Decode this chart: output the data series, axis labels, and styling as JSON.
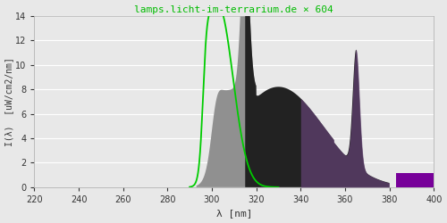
{
  "title": "lamps.licht-im-terrarium.de × 604",
  "xlabel": "λ [nm]",
  "ylabel": "I(λ)  [uW/cm2/nm]",
  "xlim": [
    220,
    400
  ],
  "ylim": [
    0,
    14
  ],
  "yticks": [
    0,
    2,
    4,
    6,
    8,
    10,
    12,
    14
  ],
  "xticks": [
    220,
    240,
    260,
    280,
    300,
    320,
    340,
    360,
    380,
    400
  ],
  "bg_color": "#e8e8e8",
  "grid_color": "#ffffff",
  "title_color": "#00bb00",
  "axis_label_color": "#333333",
  "font_family": "monospace",
  "gray_color": "#909090",
  "dark_color": "#222222",
  "mauve_color": "#604070",
  "purple_color": "#770099"
}
